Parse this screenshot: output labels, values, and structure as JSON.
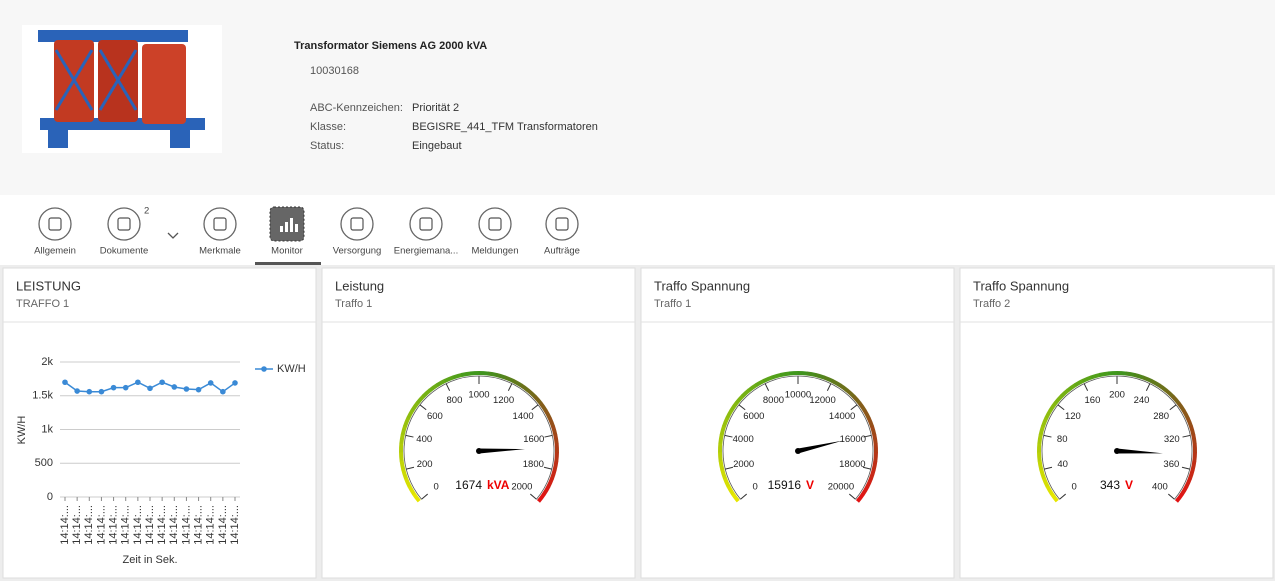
{
  "header": {
    "title": "Transformator Siemens AG 2000 kVA",
    "id": "10030168",
    "fields": [
      {
        "label": "ABC-Kennzeichen:",
        "value": "Priorität 2"
      },
      {
        "label": "Klasse:",
        "value": "BEGISRE_441_TFM Transformatoren"
      },
      {
        "label": "Status:",
        "value": "Eingebaut"
      }
    ]
  },
  "tabs": [
    {
      "label": "Allgemein"
    },
    {
      "label": "Dokumente",
      "badge": 2
    },
    {
      "label": "Merkmale"
    },
    {
      "label": "Monitor",
      "selected": true
    },
    {
      "label": "Versorgung"
    },
    {
      "label": "Energiemana..."
    },
    {
      "label": "Meldungen"
    },
    {
      "label": "Aufträge"
    }
  ],
  "chart_data": [
    {
      "type": "line",
      "title": "LEISTUNG",
      "subtitle": "TRAFFO 1",
      "y_label": "KW/H",
      "x_label": "Zeit in Sek.",
      "categories": [
        "14:14:...",
        "14:14:...",
        "14:14:...",
        "14:14:...",
        "14:14:...",
        "14:14:...",
        "14:14:...",
        "14:14:...",
        "14:14:...",
        "14:14:...",
        "14:14:...",
        "14:14:...",
        "14:14:...",
        "14:14:...",
        "14:14:..."
      ],
      "series": [
        {
          "name": "KW/H",
          "color": "#3a8ad6",
          "values": [
            1700,
            1570,
            1560,
            1560,
            1620,
            1620,
            1700,
            1610,
            1700,
            1630,
            1600,
            1590,
            1690,
            1560,
            1690
          ]
        }
      ],
      "ylim": [
        0,
        2000
      ],
      "yticks": [
        0,
        500,
        {
          "value": 1000,
          "label": "1k"
        },
        {
          "value": 1500,
          "label": "1.5k"
        },
        {
          "value": 2000,
          "label": "2k"
        }
      ],
      "grid": true,
      "legend": "right"
    },
    {
      "type": "gauge",
      "title": "Leistung",
      "subtitle": "Traffo 1",
      "lim": [
        0,
        2000
      ],
      "ticks": [
        0,
        200,
        400,
        600,
        800,
        1000,
        1200,
        1400,
        1600,
        1800,
        2000
      ],
      "value": 1674,
      "unit": "kVA"
    },
    {
      "type": "gauge",
      "title": "Traffo Spannung",
      "subtitle": "Traffo 1",
      "lim": [
        0,
        20000
      ],
      "ticks": [
        0,
        2000,
        4000,
        6000,
        8000,
        10000,
        12000,
        14000,
        16000,
        18000,
        20000
      ],
      "value": 15916,
      "unit": "V"
    },
    {
      "type": "gauge",
      "title": "Traffo Spannung",
      "subtitle": "Traffo 2",
      "lim": [
        0,
        400
      ],
      "ticks": [
        0,
        40,
        80,
        120,
        160,
        200,
        240,
        280,
        320,
        360,
        400
      ],
      "value": 343,
      "unit": "V"
    }
  ]
}
